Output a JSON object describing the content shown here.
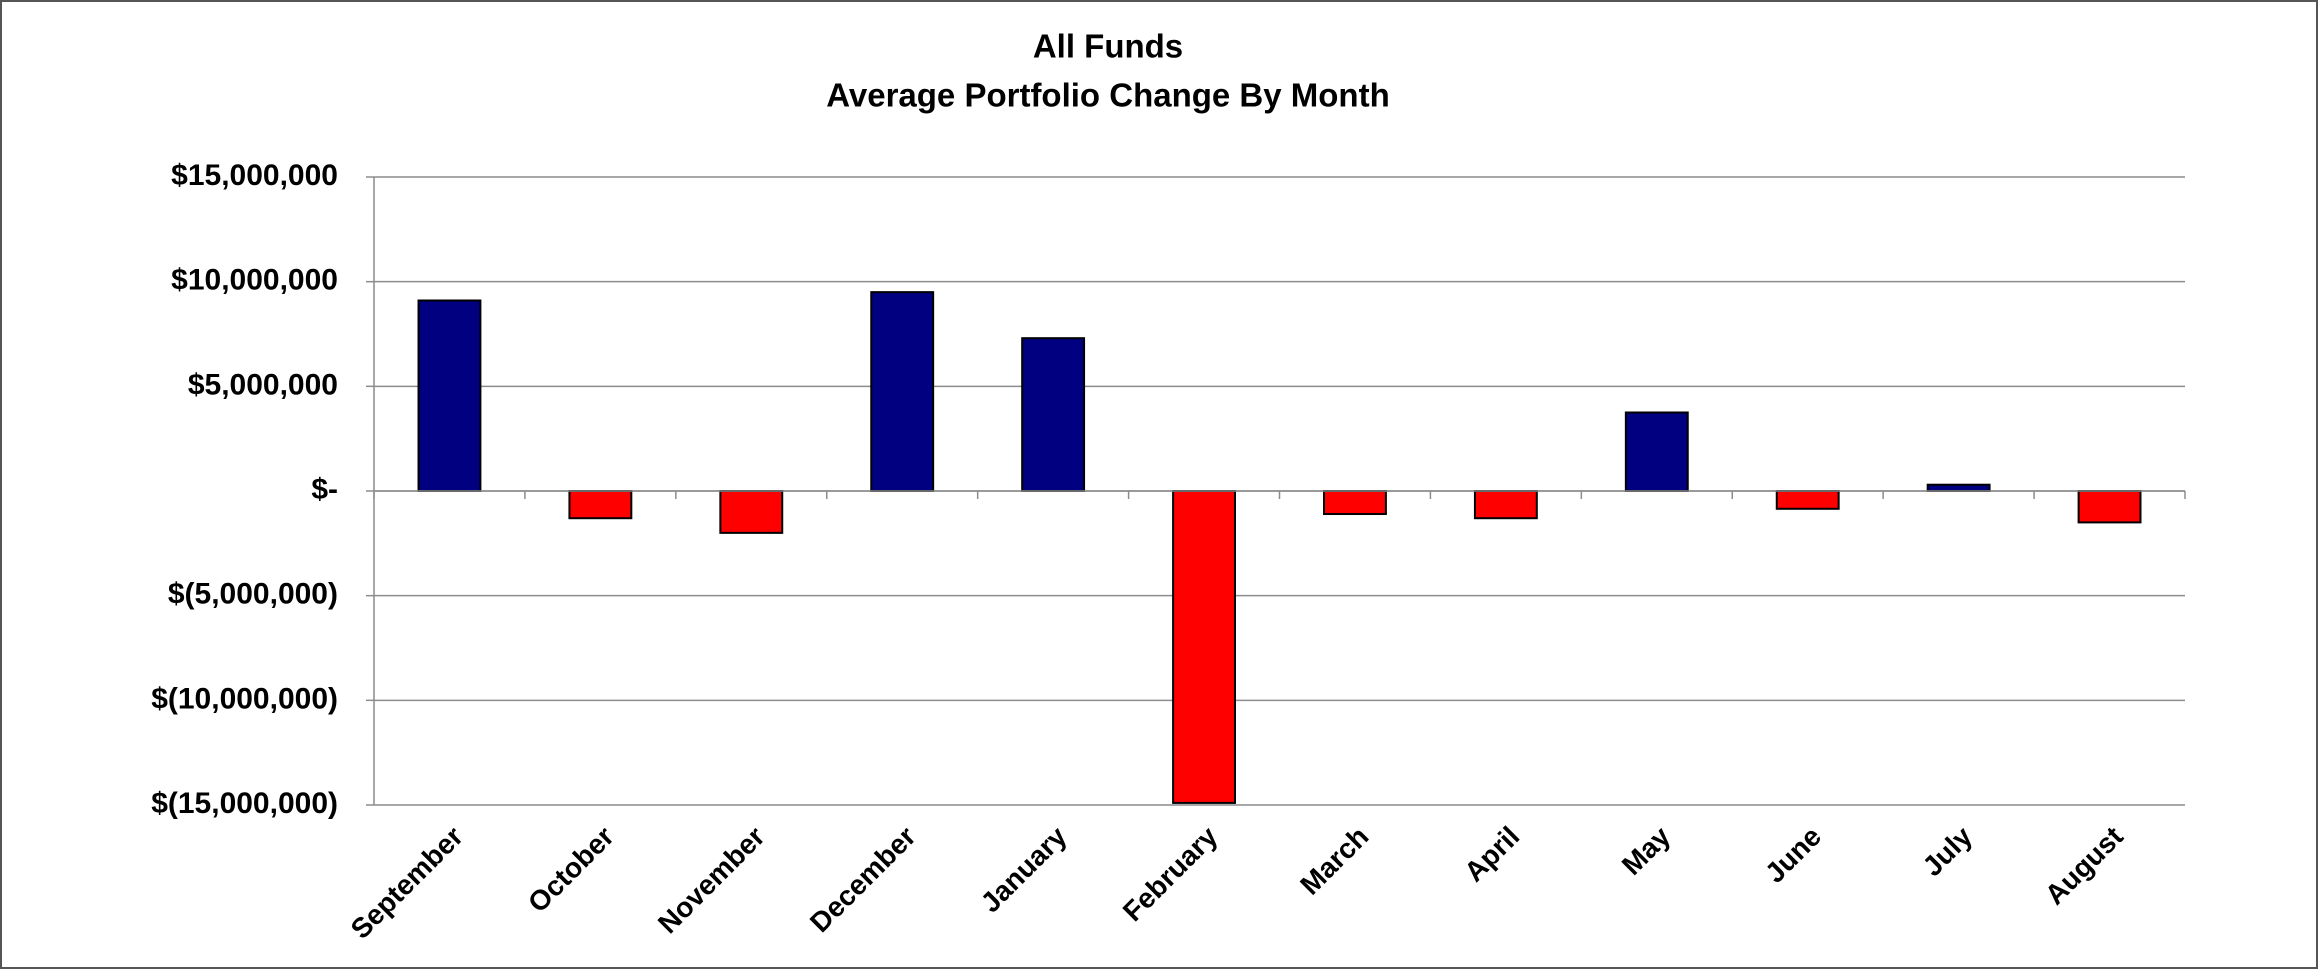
{
  "chart_data": {
    "type": "bar",
    "title": "All Funds",
    "subtitle": "Average Portfolio Change By Month",
    "categories": [
      "September",
      "October",
      "November",
      "December",
      "January",
      "February",
      "March",
      "April",
      "May",
      "June",
      "July",
      "August"
    ],
    "values": [
      9100000,
      -1300000,
      -2000000,
      9500000,
      7300000,
      -14900000,
      -1100000,
      -1300000,
      3750000,
      -850000,
      300000,
      -1500000
    ],
    "colors": [
      "#000080",
      "#ff0000",
      "#ff0000",
      "#000080",
      "#000080",
      "#ff0000",
      "#ff0000",
      "#ff0000",
      "#000080",
      "#ff0000",
      "#000080",
      "#ff0000"
    ],
    "ylim": [
      -15000000,
      15000000
    ],
    "yticks": [
      {
        "value": -15000000,
        "label": "$(15,000,000)"
      },
      {
        "value": -10000000,
        "label": "$(10,000,000)"
      },
      {
        "value": -5000000,
        "label": "$(5,000,000)"
      },
      {
        "value": 0,
        "label": "$-"
      },
      {
        "value": 5000000,
        "label": "$5,000,000"
      },
      {
        "value": 10000000,
        "label": "$10,000,000"
      },
      {
        "value": 15000000,
        "label": "$15,000,000"
      }
    ],
    "grid": true
  }
}
